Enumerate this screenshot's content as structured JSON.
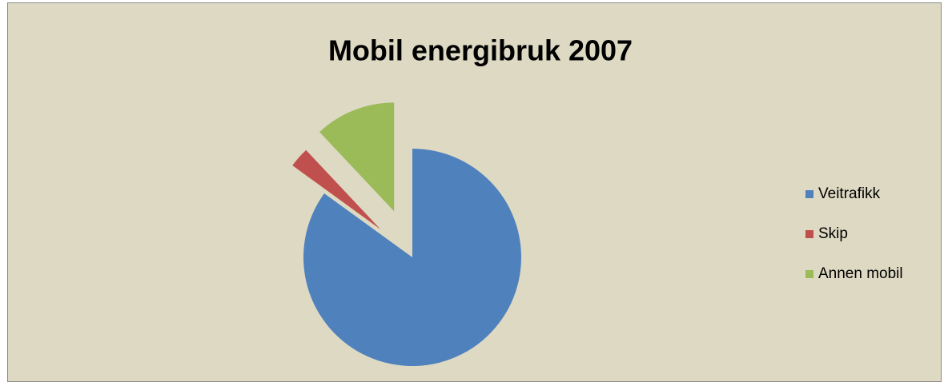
{
  "chart_data": {
    "type": "pie",
    "title": "Mobil energibruk 2007",
    "categories": [
      "Veitrafikk",
      "Skip",
      "Annen mobil"
    ],
    "values": [
      85,
      3,
      12
    ],
    "colors": [
      "#4f81bd",
      "#c0504d",
      "#9bbb59"
    ],
    "legend": "right"
  }
}
